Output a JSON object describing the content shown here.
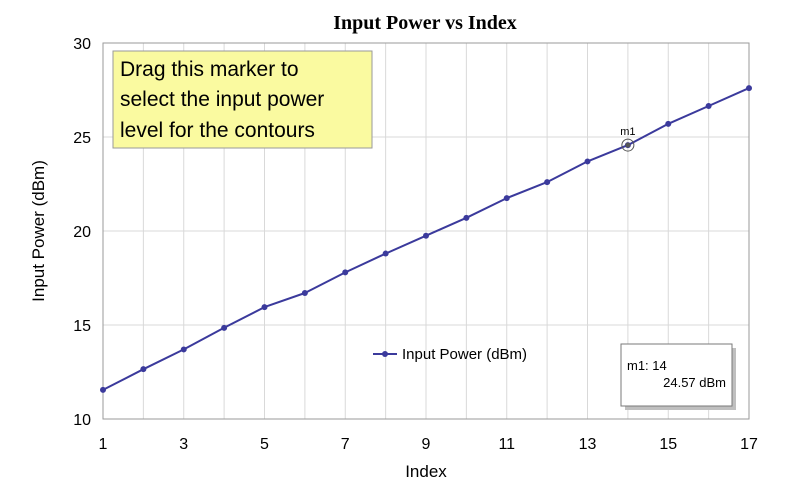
{
  "chart_data": {
    "type": "line",
    "title": "Input Power vs Index",
    "xlabel": "Index",
    "ylabel": "Input Power (dBm)",
    "xlim": [
      1,
      17
    ],
    "ylim": [
      10,
      30
    ],
    "xticks": [
      1,
      3,
      5,
      7,
      9,
      11,
      13,
      15,
      17
    ],
    "yticks": [
      10,
      15,
      20,
      25,
      30
    ],
    "grid": true,
    "legend_placement": "bottom-center",
    "series": [
      {
        "name": "Input Power (dBm)",
        "color": "#3b3a9c",
        "x": [
          1,
          2,
          3,
          4,
          5,
          6,
          7,
          8,
          9,
          10,
          11,
          12,
          13,
          14,
          15,
          16,
          17
        ],
        "y": [
          11.55,
          12.65,
          13.7,
          14.85,
          15.95,
          16.7,
          17.8,
          18.8,
          19.75,
          20.7,
          21.75,
          22.6,
          23.7,
          24.57,
          25.7,
          26.65,
          27.6
        ]
      }
    ],
    "annotation": {
      "text_lines": [
        "Drag this marker to",
        "select the input power",
        "level for the contours"
      ],
      "background": "#fafaa0"
    },
    "marker": {
      "name": "m1",
      "x": 14,
      "y": 24.57,
      "readout_line1": "m1: 14",
      "readout_line2": "24.57 dBm"
    }
  }
}
